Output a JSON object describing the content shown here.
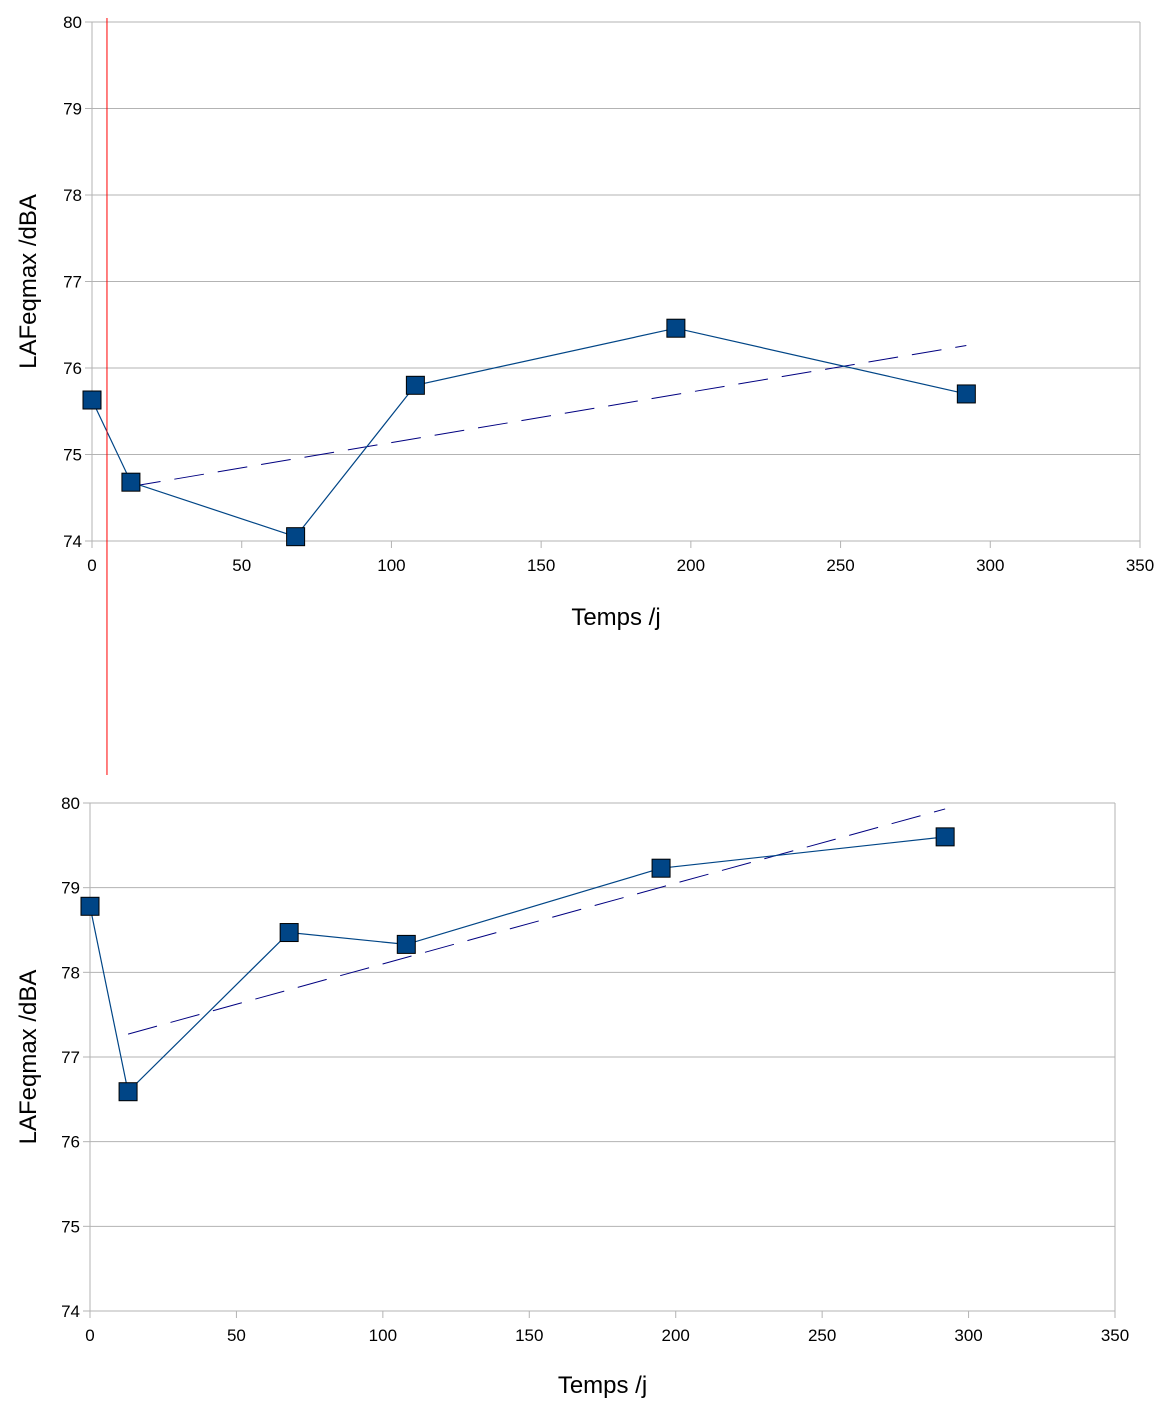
{
  "colors": {
    "series": "#004586",
    "trend": "#000080",
    "grid": "#b3b3b3",
    "axis": "#b3b3b3",
    "vertical_marker": "#ff0000"
  },
  "vertical_marker": {
    "x": 5
  },
  "chart_data": [
    {
      "type": "scatter",
      "xlabel": "Temps /j",
      "ylabel": "LAFeqmax  /dBA",
      "xlim": [
        0,
        350
      ],
      "ylim": [
        74,
        80
      ],
      "x_ticks": [
        0,
        50,
        100,
        150,
        200,
        250,
        300,
        350
      ],
      "y_ticks": [
        74,
        75,
        76,
        77,
        78,
        79,
        80
      ],
      "grid": "horizontal",
      "series": [
        {
          "x": [
            0,
            13,
            68,
            108,
            195,
            292
          ],
          "values": [
            75.63,
            74.68,
            74.05,
            75.8,
            76.46,
            75.7
          ]
        }
      ],
      "trendline": {
        "type": "linear",
        "x": [
          13,
          292
        ],
        "values": [
          74.63,
          76.26
        ]
      }
    },
    {
      "type": "scatter",
      "xlabel": "Temps /j",
      "ylabel": "LAFeqmax  /dBA",
      "xlim": [
        0,
        350
      ],
      "ylim": [
        74,
        80
      ],
      "x_ticks": [
        0,
        50,
        100,
        150,
        200,
        250,
        300,
        350
      ],
      "y_ticks": [
        74,
        75,
        76,
        77,
        78,
        79,
        80
      ],
      "grid": "horizontal",
      "series": [
        {
          "x": [
            0,
            13,
            68,
            108,
            195,
            292
          ],
          "values": [
            78.78,
            76.59,
            78.47,
            78.33,
            79.23,
            79.6
          ]
        }
      ],
      "trendline": {
        "type": "linear",
        "x": [
          13,
          292
        ],
        "values": [
          77.27,
          79.93
        ]
      }
    }
  ]
}
